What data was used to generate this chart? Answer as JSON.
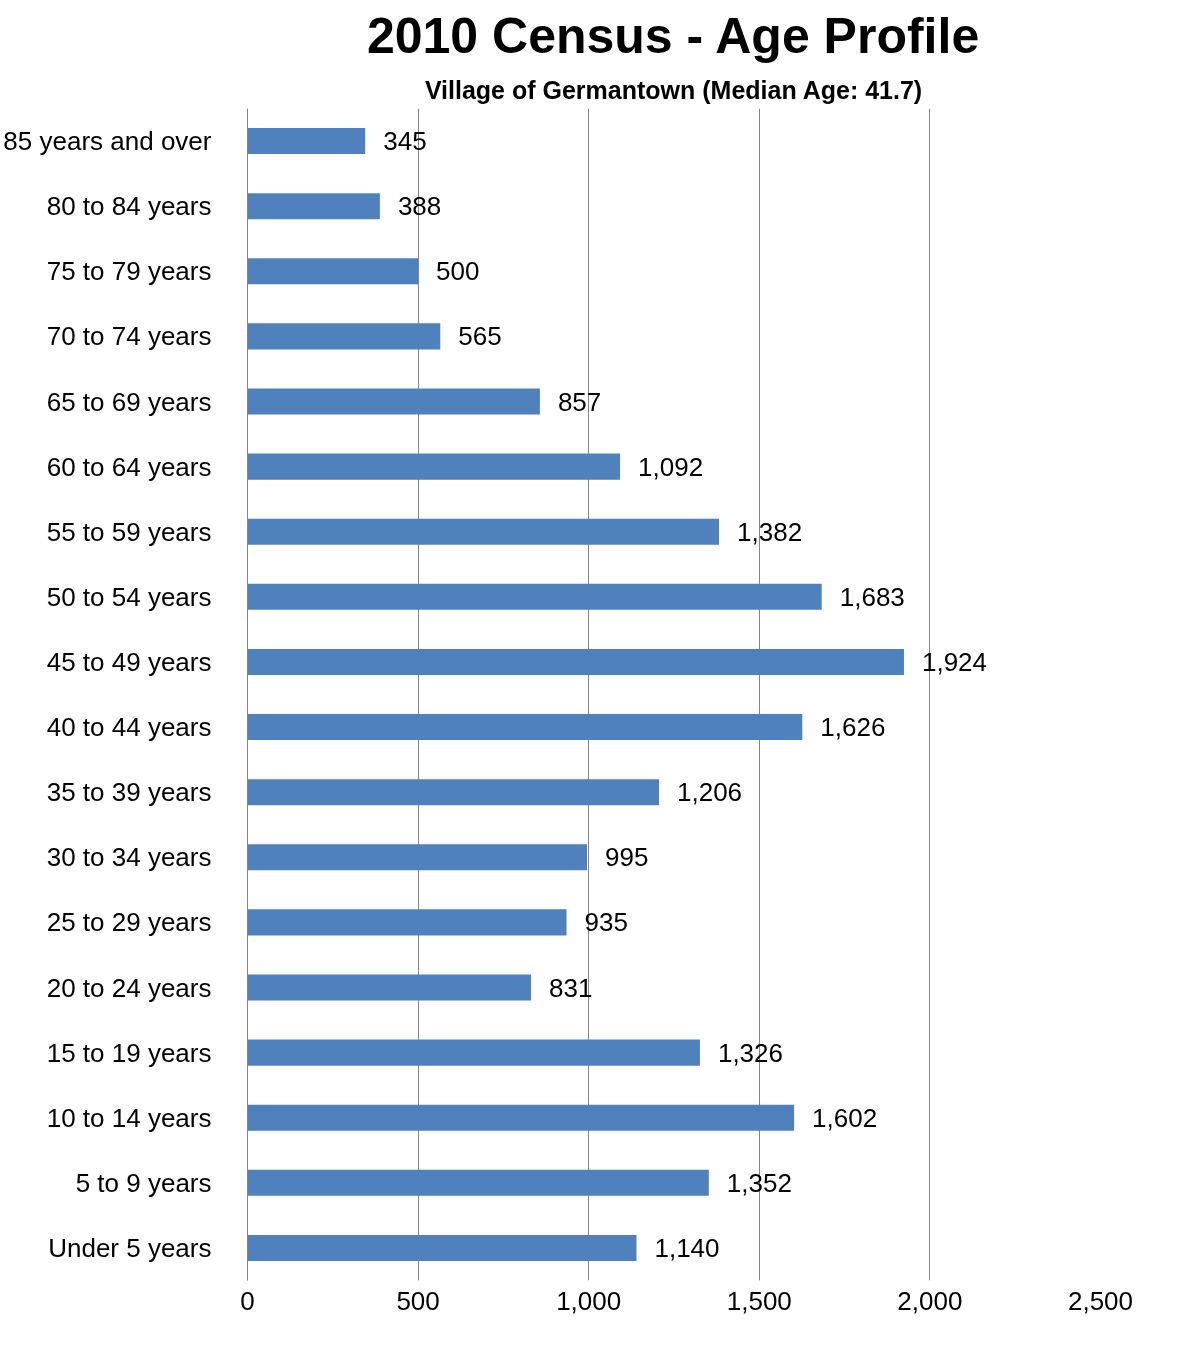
{
  "chart_data": {
    "type": "bar",
    "orientation": "horizontal",
    "title": "2010 Census - Age Profile",
    "subtitle": "Village of Germantown (Median Age: 41.7)",
    "categories": [
      "85 years and over",
      "80 to 84 years",
      "75 to 79 years",
      "70 to 74 years",
      "65 to 69 years",
      "60 to 64 years",
      "55 to 59 years",
      "50 to 54 years",
      "45 to 49 years",
      "40 to 44 years",
      "35 to 39 years",
      "30 to 34 years",
      "25 to 29 years",
      "20 to 24 years",
      "15 to 19 years",
      "10 to 14 years",
      "5 to 9 years",
      "Under 5 years"
    ],
    "values": [
      345,
      388,
      500,
      565,
      857,
      1092,
      1382,
      1683,
      1924,
      1626,
      1206,
      995,
      935,
      831,
      1326,
      1602,
      1352,
      1140
    ],
    "value_labels": [
      "345",
      "388",
      "500",
      "565",
      "857",
      "1,092",
      "1,382",
      "1,683",
      "1,924",
      "1,626",
      "1,206",
      "995",
      "935",
      "831",
      "1,326",
      "1,602",
      "1,352",
      "1,140"
    ],
    "color": "#4f81bd",
    "xlim": [
      0,
      2500
    ],
    "xticks": [
      0,
      {
        "value": 500,
        "label": "500"
      },
      {
        "value": 1000,
        "label": "1,000"
      },
      {
        "value": 1500,
        "label": "1,500"
      },
      {
        "value": 2000,
        "label": "2,000"
      },
      {
        "value": 2500,
        "label": "2,500"
      }
    ],
    "grid": "x"
  }
}
